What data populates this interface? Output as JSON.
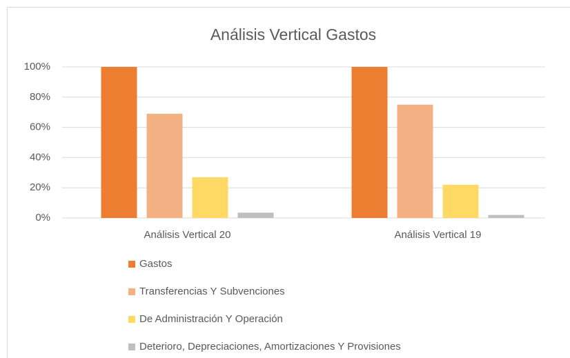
{
  "chart_data": {
    "type": "bar",
    "title": "Análisis Vertical Gastos",
    "categories": [
      "Análisis Vertical 20",
      "Análisis Vertical 19"
    ],
    "series": [
      {
        "name": "Gastos",
        "color": "#ED7D31",
        "values": [
          100,
          100
        ]
      },
      {
        "name": "Transferencias Y Subvenciones",
        "color": "#F4B183",
        "values": [
          69,
          75
        ]
      },
      {
        "name": "De Administración Y Operación",
        "color": "#FFD966",
        "values": [
          27,
          22
        ]
      },
      {
        "name": "Deterioro, Depreciaciones, Amortizaciones Y Provisiones",
        "color": "#BFBFBF",
        "values": [
          3.5,
          2
        ]
      }
    ],
    "ylim": [
      0,
      100
    ],
    "yticks": [
      {
        "value": 0,
        "label": "0%"
      },
      {
        "value": 20,
        "label": "20%"
      },
      {
        "value": 40,
        "label": "40%"
      },
      {
        "value": 60,
        "label": "60%"
      },
      {
        "value": 80,
        "label": "80%"
      },
      {
        "value": 100,
        "label": "100%"
      }
    ],
    "grid": true,
    "legend": "bottom"
  }
}
